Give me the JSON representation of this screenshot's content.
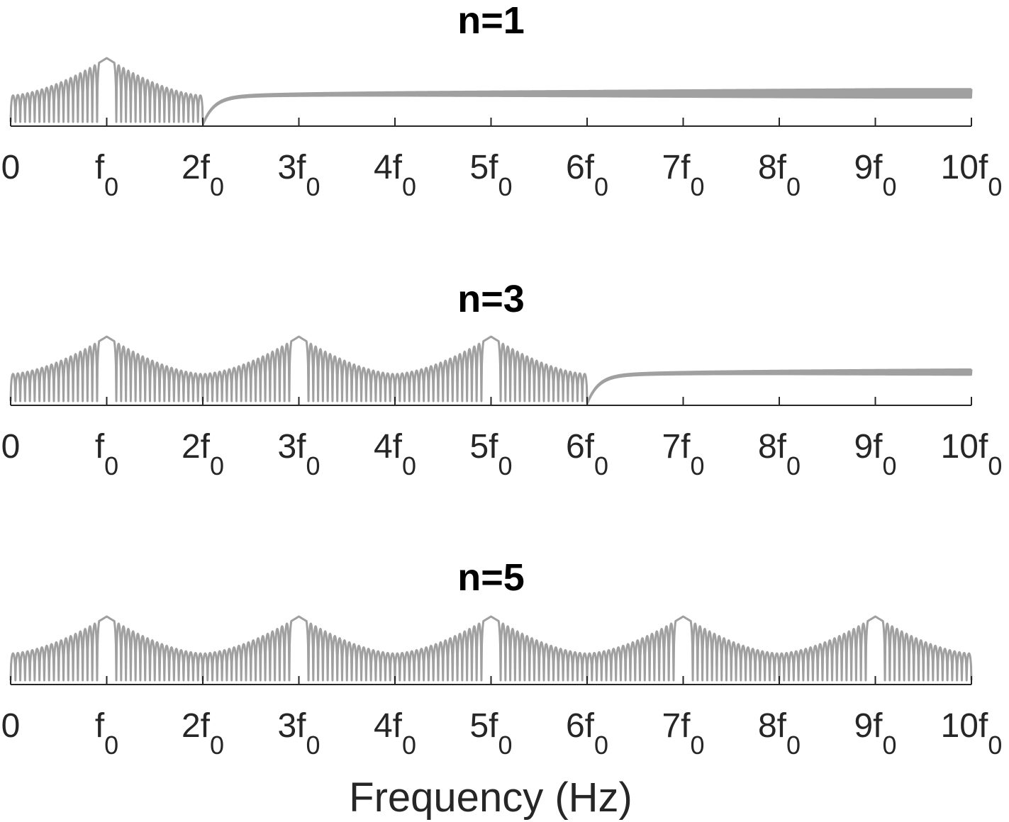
{
  "chart_data": {
    "type": "line",
    "xlabel": "Frequency (Hz)",
    "x_unit": "f0",
    "xlim": [
      0,
      10
    ],
    "yaxis_visible": false,
    "grid": false,
    "line_color": "#a0a0a0",
    "axis_color": "#262626",
    "x_ticks": [
      {
        "main": "0",
        "sub": ""
      },
      {
        "main": "f",
        "sub": "0"
      },
      {
        "main": "2f",
        "sub": "0"
      },
      {
        "main": "3f",
        "sub": "0"
      },
      {
        "main": "4f",
        "sub": "0"
      },
      {
        "main": "5f",
        "sub": "0"
      },
      {
        "main": "6f",
        "sub": "0"
      },
      {
        "main": "7f",
        "sub": "0"
      },
      {
        "main": "8f",
        "sub": "0"
      },
      {
        "main": "9f",
        "sub": "0"
      },
      {
        "main": "10f",
        "sub": "0"
      }
    ],
    "panels": [
      {
        "title": "n=1",
        "series": [
          {
            "description": "sidelobe spectrum with main peak at f0, envelope then flat noise floor beyond 2f0",
            "peaks": [
              1
            ],
            "band_end": 2,
            "x": [
              0,
              0.5,
              1,
              1.5,
              2,
              2.05,
              3,
              5,
              10
            ],
            "y": [
              0.45,
              0.65,
              1.0,
              0.65,
              0.45,
              0.0,
              0.55,
              0.62,
              0.64
            ]
          }
        ]
      },
      {
        "title": "n=3",
        "series": [
          {
            "description": "sidelobe spectrum with peaks at f0, 3f0, 5f0, flat floor beyond 6f0",
            "peaks": [
              1,
              3,
              5
            ],
            "band_end": 6,
            "x": [
              0,
              1,
              2,
              3,
              4,
              5,
              6,
              6.05,
              7,
              10
            ],
            "y": [
              0.45,
              1.0,
              0.45,
              1.0,
              0.45,
              1.0,
              0.45,
              0.0,
              0.47,
              0.5
            ]
          }
        ]
      },
      {
        "title": "n=5",
        "series": [
          {
            "description": "sidelobe spectrum with peaks at f0, 3f0, 5f0, 7f0, 9f0",
            "peaks": [
              1,
              3,
              5,
              7,
              9
            ],
            "band_end": 10,
            "x": [
              0,
              1,
              2,
              3,
              4,
              5,
              6,
              7,
              8,
              9,
              10
            ],
            "y": [
              0.45,
              1.0,
              0.45,
              1.0,
              0.45,
              1.0,
              0.45,
              1.0,
              0.45,
              1.0,
              0.4
            ]
          }
        ]
      }
    ]
  }
}
